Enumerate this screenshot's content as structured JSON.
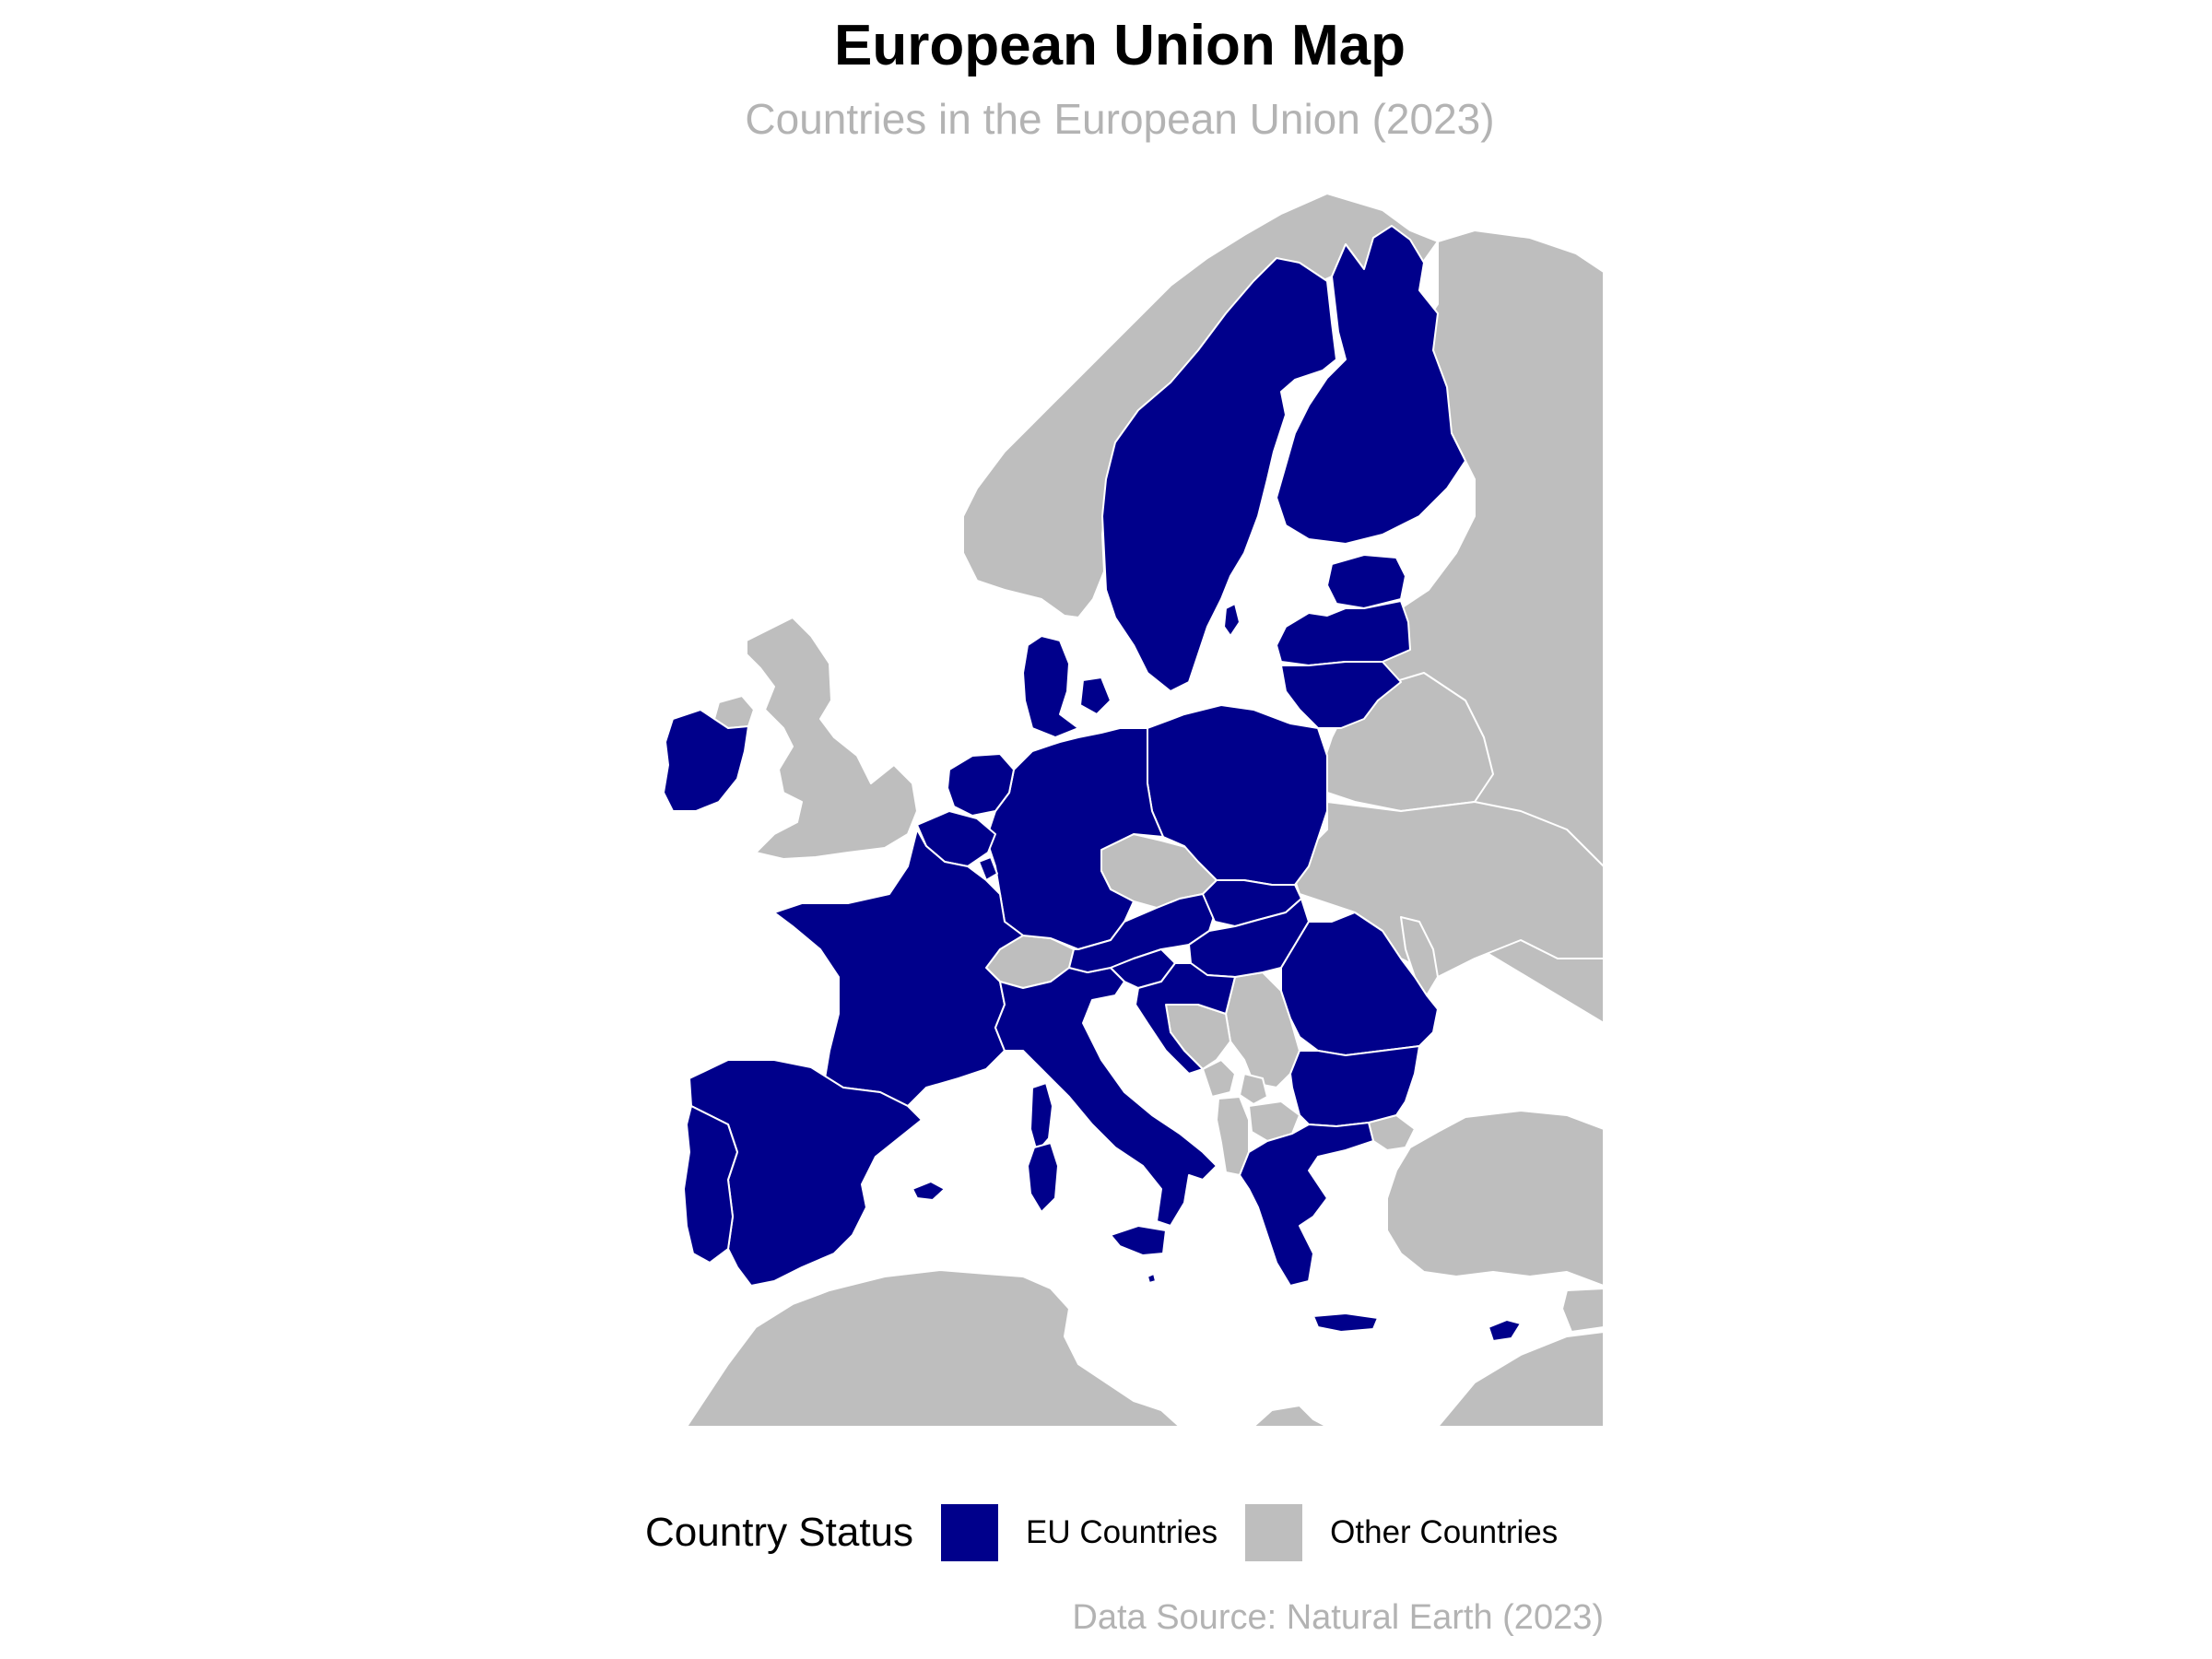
{
  "title": "European Union Map",
  "subtitle": "Countries in the European Union (2023)",
  "caption": "Data Source: Natural Earth (2023)",
  "legend": {
    "title": "Country Status",
    "items": [
      {
        "label": "EU Countries",
        "color": "#00008B"
      },
      {
        "label": "Other Countries",
        "color": "#BEBEBE"
      }
    ]
  },
  "colors": {
    "eu": "#00008B",
    "other": "#BEBEBE",
    "border": "#FFFFFF",
    "sea": "#FFFFFF"
  },
  "map_data": {
    "eu_countries": [
      "Sweden",
      "Finland",
      "Estonia",
      "Latvia",
      "Lithuania",
      "Poland",
      "Germany",
      "Denmark",
      "Netherlands",
      "Belgium",
      "Luxembourg",
      "France",
      "Spain",
      "Portugal",
      "Ireland",
      "Italy",
      "Austria",
      "Slovakia",
      "Hungary",
      "Slovenia",
      "Croatia",
      "Romania",
      "Bulgaria",
      "Greece",
      "Cyprus",
      "Malta"
    ],
    "other_countries": [
      "Norway",
      "United Kingdom",
      "Russia",
      "Belarus",
      "Ukraine",
      "Moldova",
      "Switzerland",
      "Czechia",
      "Serbia",
      "Bosnia and Herzegovina",
      "Montenegro",
      "Albania",
      "North Macedonia",
      "Kosovo",
      "Turkey",
      "Morocco",
      "Algeria",
      "Tunisia",
      "Libya",
      "Egypt"
    ]
  }
}
